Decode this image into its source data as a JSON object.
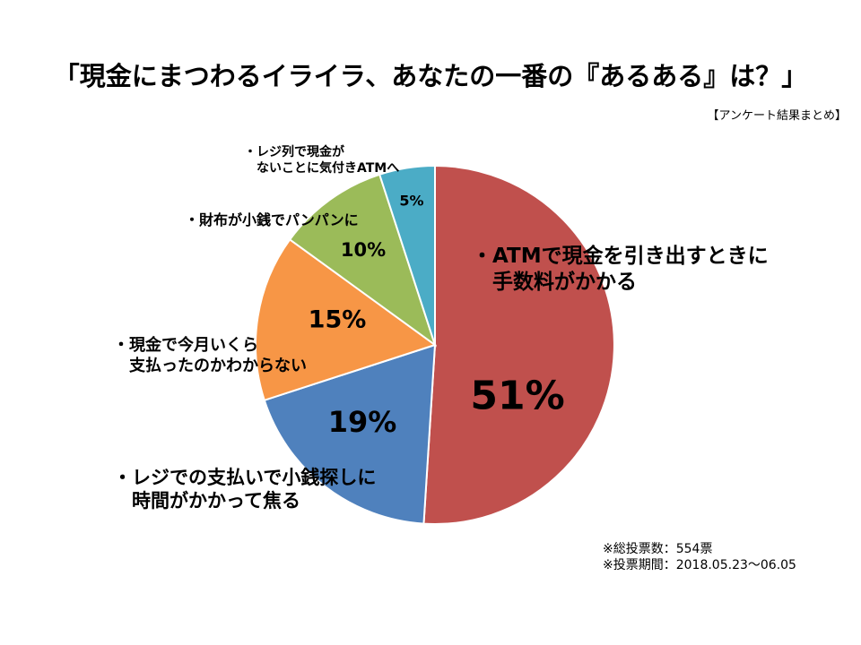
{
  "chart_data": {
    "type": "pie",
    "title": "「現金にまつわるイライラ、あなたの一番の『あるある』は？」",
    "subtitle": "【アンケート結果まとめ】",
    "slices": [
      {
        "label_lines": [
          "・ATMで現金を引き出すときに",
          "　手数料がかかる"
        ],
        "value": 51,
        "value_label": "51%",
        "color": "#c0504d"
      },
      {
        "label_lines": [
          "・レジでの支払いで小銭探しに",
          "　時間がかかって焦る"
        ],
        "value": 19,
        "value_label": "19%",
        "color": "#4f81bd"
      },
      {
        "label_lines": [
          "・現金で今月いくら",
          "　支払ったのかわからない"
        ],
        "value": 15,
        "value_label": "15%",
        "color": "#f79646"
      },
      {
        "label_lines": [
          "・財布が小銭でパンパンに"
        ],
        "value": 10,
        "value_label": "10%",
        "color": "#9bbb59"
      },
      {
        "label_lines": [
          "・レジ列で現金が",
          "　ないことに気付きATMへ"
        ],
        "value": 5,
        "value_label": "5%",
        "color": "#4bacc6"
      }
    ]
  },
  "notes": [
    "※総投票数：554票",
    "※投票期間：2018.05.23～06.05"
  ]
}
